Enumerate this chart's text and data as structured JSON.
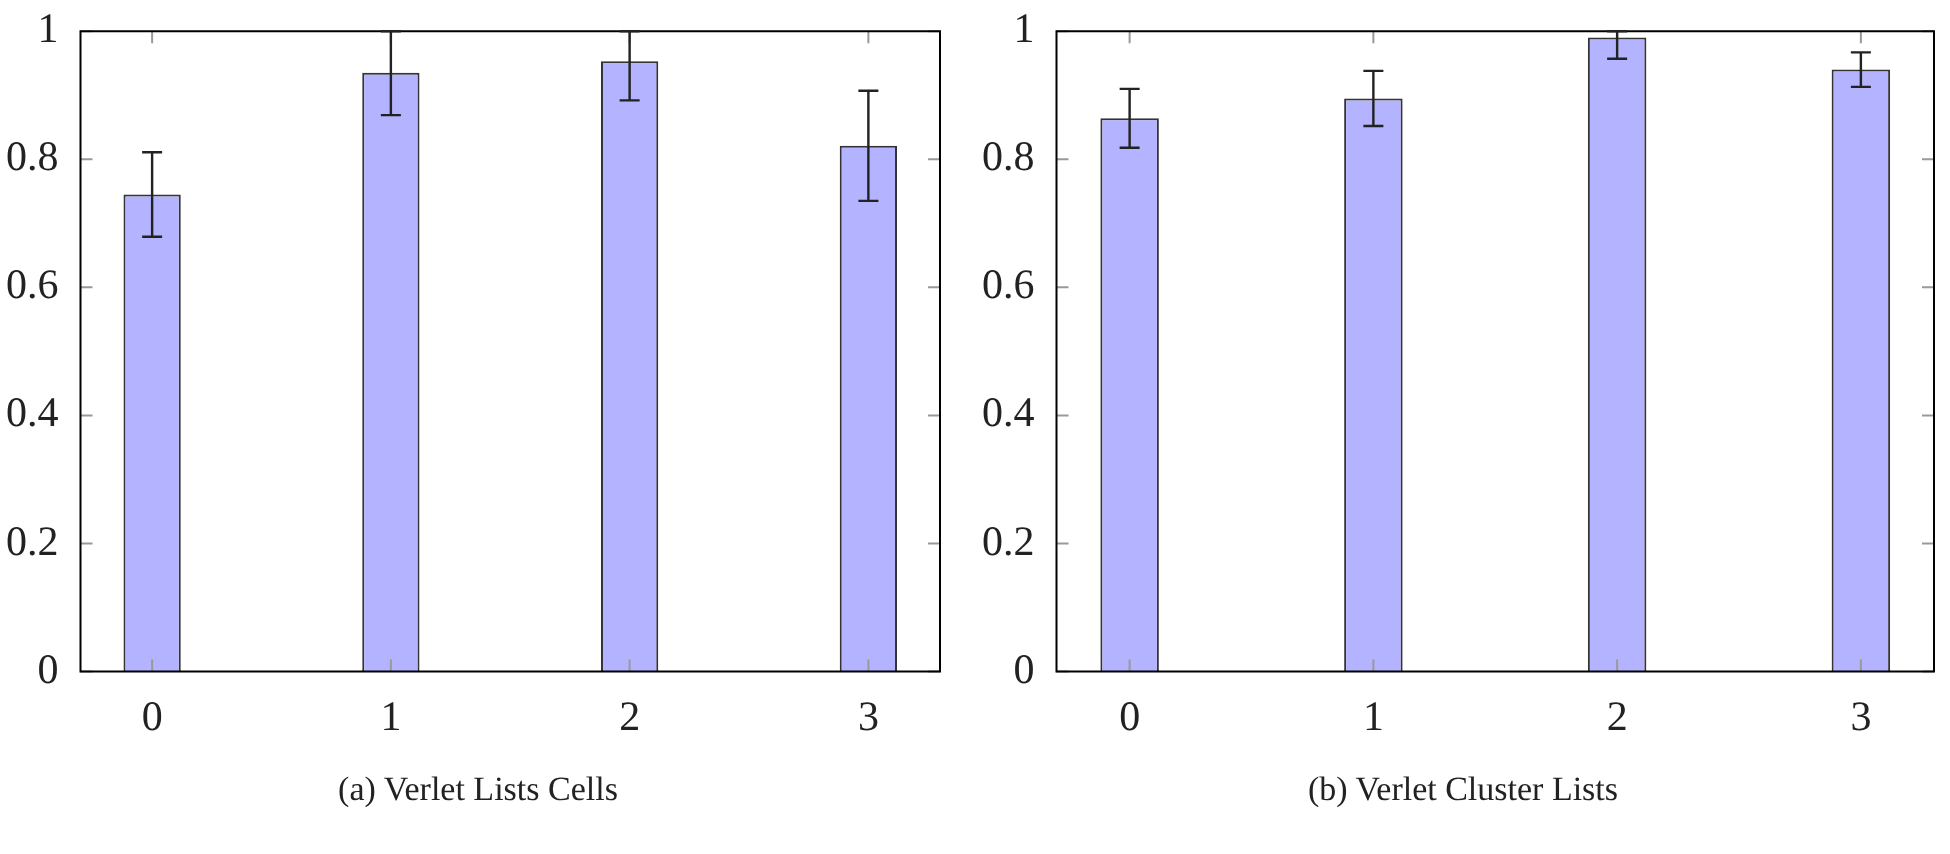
{
  "chart_data": [
    {
      "type": "bar",
      "title": "(a) Verlet Lists Cells",
      "x": [
        0,
        1,
        2,
        3
      ],
      "xlim": [
        -0.3,
        3.3
      ],
      "xticks": [
        0,
        1,
        2,
        3
      ],
      "ylim": [
        0,
        1
      ],
      "yticks": [
        0,
        0.2,
        0.4,
        0.6,
        0.8,
        1
      ],
      "values": [
        0.745,
        0.935,
        0.953,
        0.821
      ],
      "color": "#b3b3ff",
      "errors": [
        0.066,
        [
          0.869,
          1
        ],
        [
          0.892,
          1
        ],
        0.086
      ]
    },
    {
      "type": "bar",
      "title": "(b) Verlet Cluster Lists",
      "x": [
        0,
        1,
        2,
        3
      ],
      "xlim": [
        -0.3,
        3.3
      ],
      "xticks": [
        0,
        1,
        2,
        3
      ],
      "ylim": [
        0,
        1
      ],
      "yticks": [
        0,
        0.2,
        0.4,
        0.6,
        0.8,
        1
      ],
      "values": [
        0.864,
        0.895,
        0.99,
        0.94
      ],
      "color": "#b3b3ff",
      "errors": [
        0.046,
        0.043,
        [
          0.957,
          1
        ],
        0.027
      ]
    }
  ]
}
